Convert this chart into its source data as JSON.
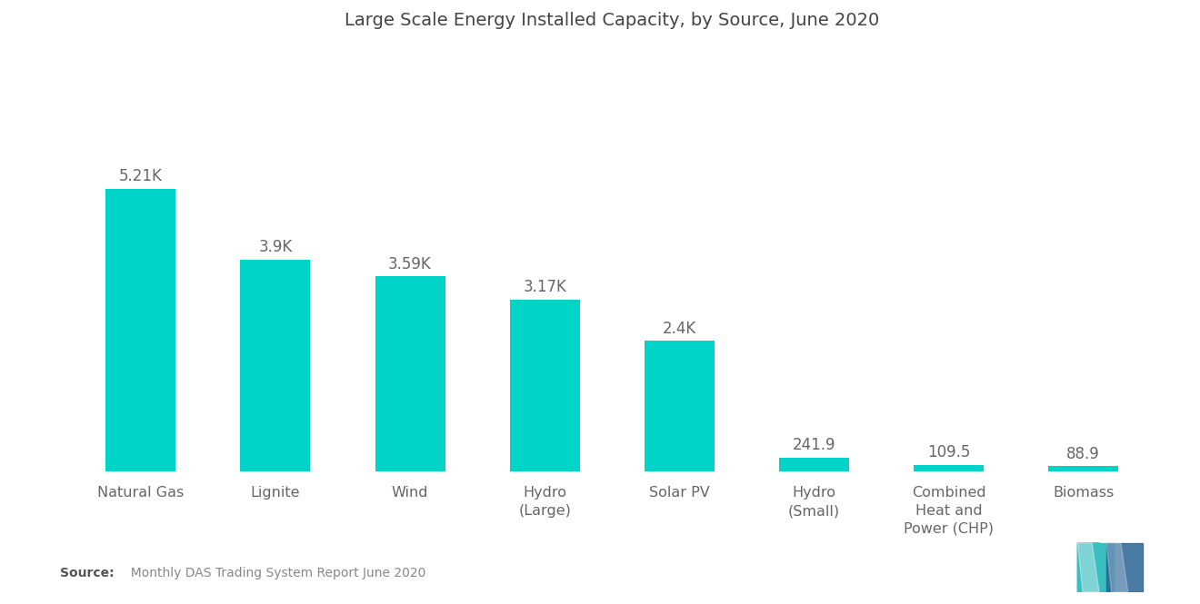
{
  "title": "Large Scale Energy Installed Capacity, by Source, June 2020",
  "categories": [
    "Natural Gas",
    "Lignite",
    "Wind",
    "Hydro\n(Large)",
    "Solar PV",
    "Hydro\n(Small)",
    "Combined\nHeat and\nPower (CHP)",
    "Biomass"
  ],
  "values": [
    5210,
    3900,
    3590,
    3170,
    2400,
    241.9,
    109.5,
    88.9
  ],
  "labels": [
    "5.21K",
    "3.9K",
    "3.59K",
    "3.17K",
    "2.4K",
    "241.9",
    "109.5",
    "88.9"
  ],
  "bar_color": "#00D4C8",
  "background_color": "#ffffff",
  "title_fontsize": 14,
  "label_fontsize": 12,
  "tick_fontsize": 11.5,
  "source_bold": "Source:",
  "source_normal": "  Monthly DAS Trading System Report June 2020",
  "ylim": [
    0,
    7800
  ],
  "bar_width": 0.52
}
